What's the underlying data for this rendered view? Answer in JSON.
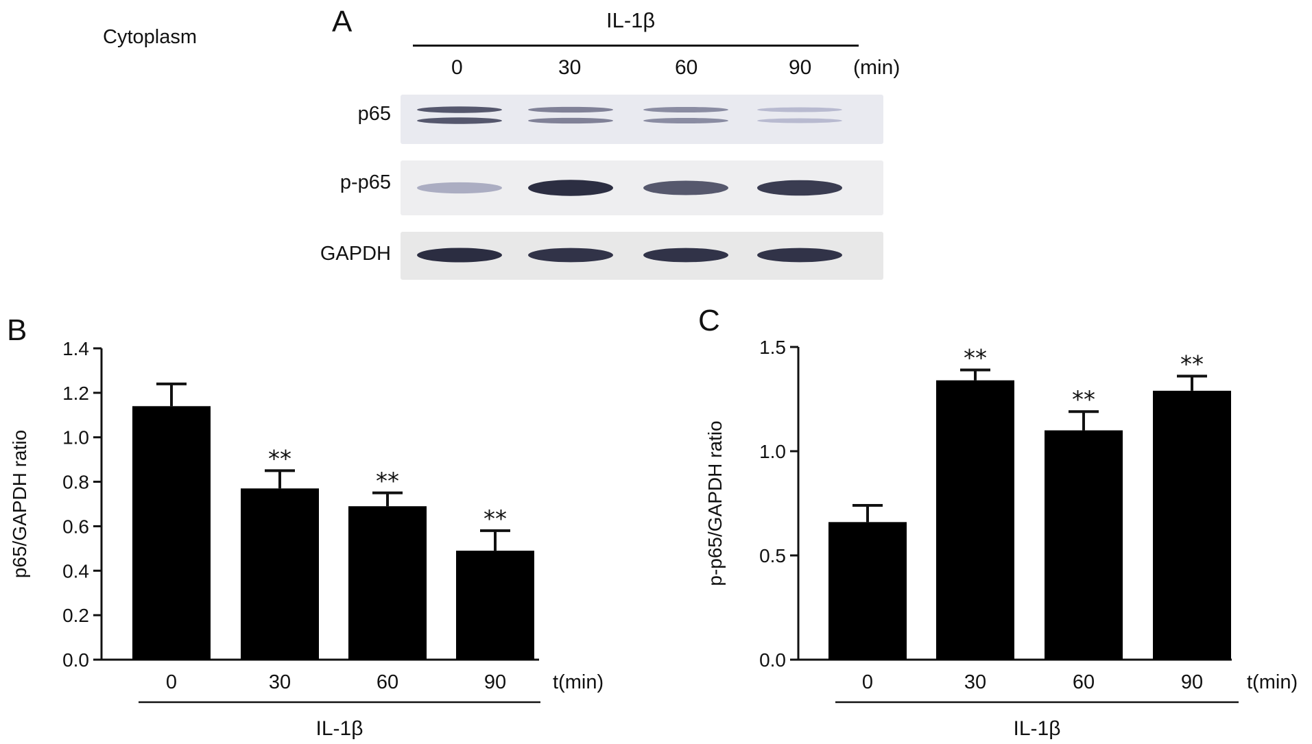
{
  "figure": {
    "cytoplasm_label": "Cytoplasm",
    "panel_a": {
      "letter": "A",
      "treatment": "IL-1β",
      "times": [
        "0",
        "30",
        "60",
        "90"
      ],
      "unit": "(min)",
      "rows": [
        {
          "label": "p65",
          "intensities": [
            0.75,
            0.55,
            0.5,
            0.28
          ]
        },
        {
          "label": "p-p65",
          "intensities": [
            0.35,
            0.95,
            0.75,
            0.88
          ]
        },
        {
          "label": "GAPDH",
          "intensities": [
            0.95,
            0.92,
            0.92,
            0.92
          ]
        }
      ]
    }
  },
  "chart_data": [
    {
      "panel": "B",
      "type": "bar",
      "categories": [
        "0",
        "30",
        "60",
        "90"
      ],
      "values": [
        1.14,
        0.77,
        0.69,
        0.49
      ],
      "errors": [
        0.1,
        0.08,
        0.06,
        0.09
      ],
      "significance": [
        "",
        "**",
        "**",
        "**"
      ],
      "ylabel": "p65/GAPDH ratio",
      "xlabel": "t(min)",
      "treatment": "IL-1β",
      "ylim": [
        0,
        1.4
      ],
      "yticks": [
        "0.0",
        "0.2",
        "0.4",
        "0.6",
        "0.8",
        "1.0",
        "1.2",
        "1.4"
      ],
      "bar_color": "#000000"
    },
    {
      "panel": "C",
      "type": "bar",
      "categories": [
        "0",
        "30",
        "60",
        "90"
      ],
      "values": [
        0.66,
        1.34,
        1.1,
        1.29
      ],
      "errors": [
        0.08,
        0.05,
        0.09,
        0.07
      ],
      "significance": [
        "",
        "**",
        "**",
        "**"
      ],
      "ylabel": "p-p65/GAPDH ratio",
      "xlabel": "t(min)",
      "treatment": "IL-1β",
      "ylim": [
        0,
        1.5
      ],
      "yticks": [
        "0.0",
        "0.5",
        "1.0",
        "1.5"
      ],
      "bar_color": "#000000"
    }
  ]
}
